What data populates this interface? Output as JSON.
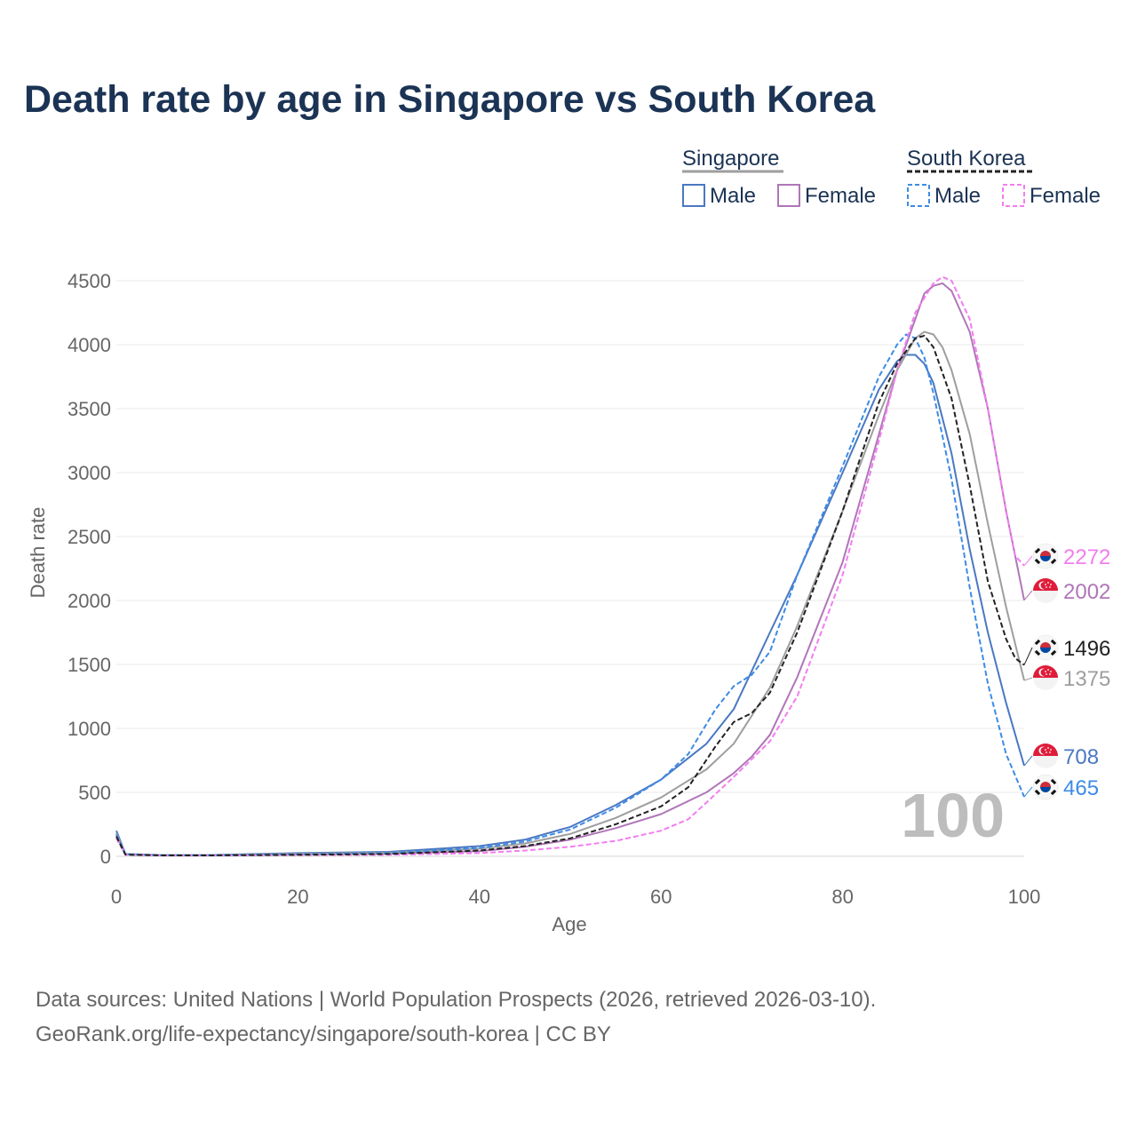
{
  "title": "Death rate by age in Singapore vs South Korea",
  "source": {
    "line1": "Data sources: United Nations | World Population Prospects (2026, retrieved 2026-03-10).",
    "line2": "GeoRank.org/life-expectancy/singapore/south-korea | CC BY"
  },
  "legend": {
    "groups": [
      {
        "name": "Singapore",
        "style": "solid",
        "items": [
          {
            "label": "Male",
            "color": "#4a78c2"
          },
          {
            "label": "Female",
            "color": "#b076b8"
          }
        ]
      },
      {
        "name": "South Korea",
        "style": "dashed",
        "items": [
          {
            "label": "Male",
            "color": "#3d8be6"
          },
          {
            "label": "Female",
            "color": "#f27df0"
          }
        ]
      }
    ]
  },
  "chart_data": {
    "type": "line",
    "title": "Death rate by age in Singapore vs South Korea",
    "xlabel": "Age",
    "ylabel": "Death rate",
    "xlim": [
      0,
      100
    ],
    "ylim": [
      -100,
      4650
    ],
    "xticks": [
      0,
      20,
      40,
      60,
      80,
      100
    ],
    "yticks": [
      0,
      500,
      1000,
      1500,
      2000,
      2500,
      3000,
      3500,
      4000,
      4500
    ],
    "grid": true,
    "year_annotation": "100",
    "series": [
      {
        "name": "Singapore Male",
        "country": "Singapore",
        "flag": "sg",
        "color": "#4a78c2",
        "dash": false,
        "end_label": "708",
        "points": [
          [
            0,
            200
          ],
          [
            1,
            18
          ],
          [
            5,
            10
          ],
          [
            10,
            10
          ],
          [
            20,
            25
          ],
          [
            30,
            35
          ],
          [
            40,
            80
          ],
          [
            45,
            130
          ],
          [
            50,
            230
          ],
          [
            55,
            400
          ],
          [
            60,
            600
          ],
          [
            65,
            880
          ],
          [
            68,
            1150
          ],
          [
            70,
            1450
          ],
          [
            72,
            1750
          ],
          [
            75,
            2200
          ],
          [
            80,
            3000
          ],
          [
            84,
            3650
          ],
          [
            86,
            3870
          ],
          [
            87,
            3920
          ],
          [
            88,
            3920
          ],
          [
            89,
            3850
          ],
          [
            90,
            3700
          ],
          [
            92,
            3150
          ],
          [
            94,
            2400
          ],
          [
            96,
            1750
          ],
          [
            98,
            1200
          ],
          [
            100,
            708
          ]
        ]
      },
      {
        "name": "Singapore Female",
        "country": "Singapore",
        "flag": "sg",
        "color": "#b076b8",
        "dash": false,
        "end_label": "2002",
        "points": [
          [
            0,
            170
          ],
          [
            1,
            15
          ],
          [
            5,
            8
          ],
          [
            10,
            8
          ],
          [
            20,
            15
          ],
          [
            30,
            20
          ],
          [
            40,
            40
          ],
          [
            45,
            75
          ],
          [
            50,
            130
          ],
          [
            55,
            220
          ],
          [
            60,
            330
          ],
          [
            65,
            500
          ],
          [
            68,
            650
          ],
          [
            70,
            780
          ],
          [
            72,
            950
          ],
          [
            75,
            1400
          ],
          [
            80,
            2300
          ],
          [
            84,
            3300
          ],
          [
            86,
            3800
          ],
          [
            88,
            4200
          ],
          [
            89,
            4400
          ],
          [
            90,
            4460
          ],
          [
            91,
            4480
          ],
          [
            92,
            4420
          ],
          [
            94,
            4100
          ],
          [
            96,
            3500
          ],
          [
            98,
            2700
          ],
          [
            100,
            2002
          ]
        ]
      },
      {
        "name": "Singapore Total",
        "country": "Singapore",
        "flag": "sg",
        "color": "#9e9e9e",
        "dash": false,
        "end_label": "1375",
        "points": [
          [
            0,
            180
          ],
          [
            1,
            16
          ],
          [
            5,
            9
          ],
          [
            10,
            9
          ],
          [
            20,
            20
          ],
          [
            30,
            28
          ],
          [
            40,
            60
          ],
          [
            45,
            100
          ],
          [
            50,
            175
          ],
          [
            55,
            300
          ],
          [
            60,
            460
          ],
          [
            65,
            680
          ],
          [
            68,
            880
          ],
          [
            70,
            1100
          ],
          [
            72,
            1320
          ],
          [
            75,
            1800
          ],
          [
            80,
            2700
          ],
          [
            84,
            3450
          ],
          [
            86,
            3800
          ],
          [
            88,
            4050
          ],
          [
            89,
            4100
          ],
          [
            90,
            4080
          ],
          [
            91,
            3980
          ],
          [
            92,
            3800
          ],
          [
            94,
            3300
          ],
          [
            96,
            2600
          ],
          [
            98,
            1950
          ],
          [
            100,
            1375
          ]
        ]
      },
      {
        "name": "South Korea Male",
        "country": "South Korea",
        "flag": "kr",
        "color": "#3d8be6",
        "dash": true,
        "end_label": "465",
        "points": [
          [
            0,
            170
          ],
          [
            1,
            15
          ],
          [
            5,
            8
          ],
          [
            10,
            8
          ],
          [
            20,
            15
          ],
          [
            30,
            25
          ],
          [
            40,
            65
          ],
          [
            45,
            115
          ],
          [
            50,
            210
          ],
          [
            55,
            380
          ],
          [
            60,
            600
          ],
          [
            63,
            800
          ],
          [
            66,
            1150
          ],
          [
            68,
            1330
          ],
          [
            70,
            1420
          ],
          [
            72,
            1600
          ],
          [
            75,
            2200
          ],
          [
            80,
            3050
          ],
          [
            84,
            3750
          ],
          [
            86,
            4000
          ],
          [
            87,
            4080
          ],
          [
            88,
            4050
          ],
          [
            89,
            3900
          ],
          [
            90,
            3620
          ],
          [
            92,
            2950
          ],
          [
            94,
            2100
          ],
          [
            96,
            1350
          ],
          [
            98,
            800
          ],
          [
            100,
            465
          ]
        ]
      },
      {
        "name": "South Korea Female",
        "country": "South Korea",
        "flag": "kr",
        "color": "#f27df0",
        "dash": true,
        "end_label": "2272",
        "points": [
          [
            0,
            140
          ],
          [
            1,
            12
          ],
          [
            5,
            6
          ],
          [
            10,
            6
          ],
          [
            20,
            10
          ],
          [
            30,
            12
          ],
          [
            40,
            25
          ],
          [
            45,
            45
          ],
          [
            50,
            75
          ],
          [
            55,
            120
          ],
          [
            60,
            200
          ],
          [
            63,
            290
          ],
          [
            65,
            420
          ],
          [
            68,
            620
          ],
          [
            70,
            760
          ],
          [
            72,
            900
          ],
          [
            75,
            1250
          ],
          [
            80,
            2200
          ],
          [
            84,
            3250
          ],
          [
            86,
            3800
          ],
          [
            88,
            4250
          ],
          [
            90,
            4480
          ],
          [
            91,
            4530
          ],
          [
            92,
            4500
          ],
          [
            94,
            4200
          ],
          [
            96,
            3500
          ],
          [
            98,
            2700
          ],
          [
            99,
            2350
          ],
          [
            100,
            2272
          ]
        ]
      },
      {
        "name": "South Korea Total",
        "country": "South Korea",
        "flag": "kr",
        "color": "#222222",
        "dash": true,
        "end_label": "1496",
        "points": [
          [
            0,
            155
          ],
          [
            1,
            13
          ],
          [
            5,
            7
          ],
          [
            10,
            7
          ],
          [
            20,
            12
          ],
          [
            30,
            18
          ],
          [
            40,
            45
          ],
          [
            45,
            80
          ],
          [
            50,
            140
          ],
          [
            55,
            250
          ],
          [
            60,
            390
          ],
          [
            63,
            540
          ],
          [
            66,
            860
          ],
          [
            68,
            1050
          ],
          [
            70,
            1120
          ],
          [
            72,
            1280
          ],
          [
            75,
            1750
          ],
          [
            80,
            2700
          ],
          [
            84,
            3550
          ],
          [
            86,
            3850
          ],
          [
            88,
            4050
          ],
          [
            89,
            4070
          ],
          [
            90,
            3980
          ],
          [
            92,
            3580
          ],
          [
            94,
            2900
          ],
          [
            96,
            2150
          ],
          [
            98,
            1700
          ],
          [
            99,
            1550
          ],
          [
            100,
            1496
          ]
        ]
      }
    ]
  }
}
